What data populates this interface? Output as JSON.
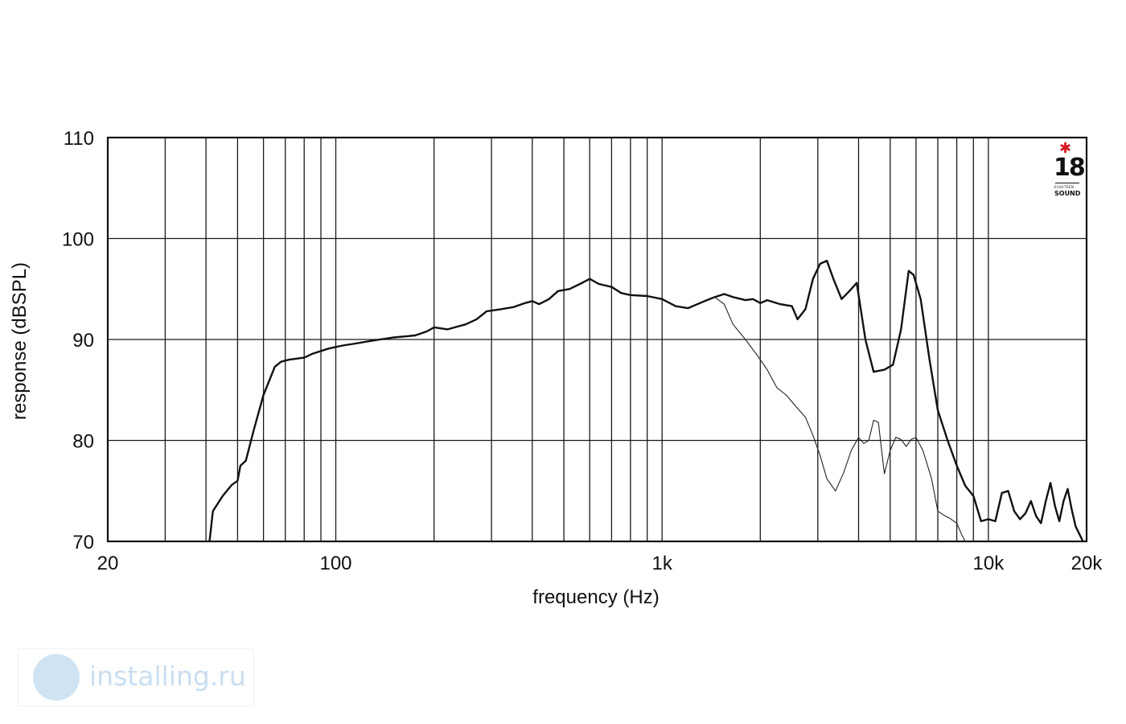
{
  "chart_data": {
    "type": "line",
    "title": "",
    "xlabel": "frequency (Hz)",
    "ylabel": "response (dBSPL)",
    "xscale": "log",
    "xlim": [
      20,
      20000
    ],
    "ylim": [
      70,
      110
    ],
    "x_ticks": [
      {
        "value": 20,
        "label": "20"
      },
      {
        "value": 100,
        "label": "100"
      },
      {
        "value": 1000,
        "label": "1k"
      },
      {
        "value": 10000,
        "label": "10k"
      },
      {
        "value": 20000,
        "label": "20k"
      }
    ],
    "y_ticks": [
      {
        "value": 110,
        "label": "110"
      },
      {
        "value": 100,
        "label": "100"
      },
      {
        "value": 90,
        "label": "90"
      },
      {
        "value": 80,
        "label": "80"
      },
      {
        "value": 70,
        "label": "70"
      }
    ],
    "x_gridlines": [
      30,
      40,
      50,
      60,
      70,
      80,
      90,
      100,
      200,
      300,
      400,
      500,
      600,
      700,
      800,
      900,
      1000,
      2000,
      3000,
      4000,
      5000,
      6000,
      7000,
      8000,
      9000,
      10000
    ],
    "y_gridlines": [
      80,
      90,
      100
    ],
    "grid": true,
    "legend": "none",
    "series": [
      {
        "style": "thick",
        "points": [
          [
            41,
            70
          ],
          [
            42,
            73
          ],
          [
            45,
            74.5
          ],
          [
            48,
            75.6
          ],
          [
            50,
            76
          ],
          [
            51,
            77.5
          ],
          [
            53,
            78
          ],
          [
            56,
            81
          ],
          [
            60,
            84.5
          ],
          [
            65,
            87.3
          ],
          [
            68,
            87.8
          ],
          [
            72,
            88
          ],
          [
            80,
            88.2
          ],
          [
            85,
            88.6
          ],
          [
            95,
            89.1
          ],
          [
            105,
            89.4
          ],
          [
            115,
            89.6
          ],
          [
            130,
            89.9
          ],
          [
            150,
            90.2
          ],
          [
            175,
            90.4
          ],
          [
            190,
            90.8
          ],
          [
            200,
            91.2
          ],
          [
            220,
            91
          ],
          [
            250,
            91.5
          ],
          [
            270,
            92
          ],
          [
            290,
            92.8
          ],
          [
            320,
            93
          ],
          [
            350,
            93.2
          ],
          [
            380,
            93.6
          ],
          [
            400,
            93.8
          ],
          [
            420,
            93.5
          ],
          [
            450,
            94
          ],
          [
            480,
            94.8
          ],
          [
            520,
            95
          ],
          [
            560,
            95.5
          ],
          [
            600,
            96
          ],
          [
            640,
            95.5
          ],
          [
            700,
            95.2
          ],
          [
            750,
            94.6
          ],
          [
            800,
            94.4
          ],
          [
            900,
            94.3
          ],
          [
            1000,
            94
          ],
          [
            1100,
            93.3
          ],
          [
            1200,
            93.1
          ],
          [
            1350,
            93.8
          ],
          [
            1450,
            94.2
          ],
          [
            1550,
            94.5
          ],
          [
            1650,
            94.2
          ],
          [
            1800,
            93.9
          ],
          [
            1900,
            94
          ],
          [
            2000,
            93.6
          ],
          [
            2100,
            93.9
          ],
          [
            2300,
            93.5
          ],
          [
            2500,
            93.3
          ],
          [
            2600,
            92
          ],
          [
            2750,
            93
          ],
          [
            2900,
            96
          ],
          [
            3050,
            97.5
          ],
          [
            3200,
            97.8
          ],
          [
            3350,
            96
          ],
          [
            3550,
            94
          ],
          [
            3750,
            94.8
          ],
          [
            3950,
            95.6
          ],
          [
            4200,
            90
          ],
          [
            4450,
            86.8
          ],
          [
            4800,
            87
          ],
          [
            5100,
            87.5
          ],
          [
            5400,
            91
          ],
          [
            5700,
            96.8
          ],
          [
            5900,
            96.4
          ],
          [
            6200,
            94
          ],
          [
            6600,
            88
          ],
          [
            7000,
            83
          ],
          [
            7500,
            80
          ],
          [
            8000,
            77.5
          ],
          [
            8500,
            75.5
          ],
          [
            9000,
            74.5
          ],
          [
            9500,
            72
          ],
          [
            10000,
            72.2
          ],
          [
            10500,
            72
          ],
          [
            11000,
            74.8
          ],
          [
            11500,
            75
          ],
          [
            12000,
            73
          ],
          [
            12500,
            72.2
          ],
          [
            13000,
            72.8
          ],
          [
            13500,
            74
          ],
          [
            14000,
            72.5
          ],
          [
            14500,
            71.8
          ],
          [
            15000,
            74
          ],
          [
            15500,
            75.8
          ],
          [
            16000,
            73.5
          ],
          [
            16500,
            72
          ],
          [
            17000,
            74
          ],
          [
            17500,
            75.2
          ],
          [
            18000,
            73.2
          ],
          [
            18500,
            71.5
          ],
          [
            19500,
            70
          ]
        ]
      },
      {
        "style": "thin",
        "points": [
          [
            1450,
            94.2
          ],
          [
            1550,
            93.5
          ],
          [
            1650,
            91.5
          ],
          [
            1800,
            90
          ],
          [
            1950,
            88.5
          ],
          [
            2100,
            87
          ],
          [
            2250,
            85.2
          ],
          [
            2400,
            84.5
          ],
          [
            2550,
            83.5
          ],
          [
            2750,
            82.3
          ],
          [
            2900,
            80.5
          ],
          [
            3050,
            78.5
          ],
          [
            3200,
            76.2
          ],
          [
            3400,
            75
          ],
          [
            3600,
            76.8
          ],
          [
            3800,
            79
          ],
          [
            4000,
            80.3
          ],
          [
            4150,
            79.7
          ],
          [
            4300,
            80
          ],
          [
            4450,
            82
          ],
          [
            4600,
            81.8
          ],
          [
            4800,
            76.7
          ],
          [
            5000,
            79
          ],
          [
            5200,
            80.3
          ],
          [
            5400,
            80.1
          ],
          [
            5600,
            79.4
          ],
          [
            5800,
            80.1
          ],
          [
            6000,
            80.3
          ],
          [
            6300,
            79
          ],
          [
            6700,
            76.2
          ],
          [
            7000,
            73
          ],
          [
            7300,
            72.6
          ],
          [
            7600,
            72.3
          ],
          [
            8000,
            71.8
          ],
          [
            8300,
            70.6
          ],
          [
            8500,
            70
          ]
        ]
      }
    ]
  },
  "logo": {
    "text": "18",
    "subtext_top": "EIGHTEEN",
    "subtext_bottom": "SOUND",
    "star_color": "#d71920"
  },
  "watermark": {
    "text": "installing.ru",
    "color": "#c9def0"
  }
}
